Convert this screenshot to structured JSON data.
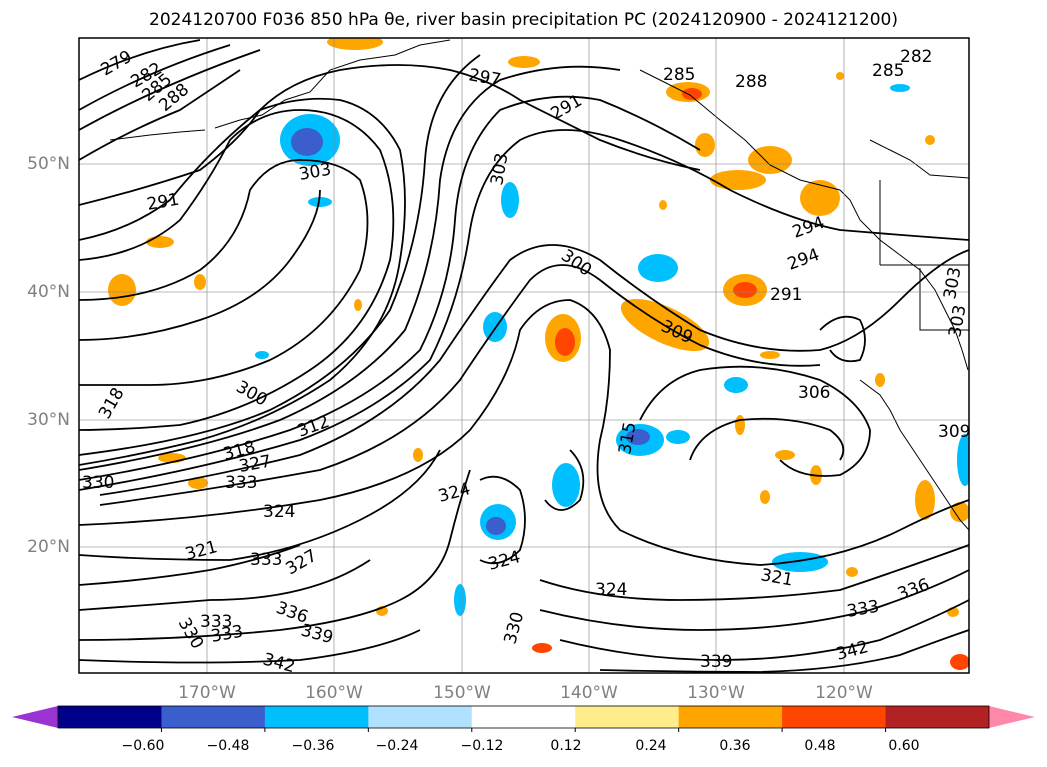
{
  "title": "2024120700 F036 850 hPa θe, river basin precipitation PC (2024120900 - 2024121200)",
  "axes": {
    "lat_ticks": [
      "50°N",
      "40°N",
      "30°N",
      "20°N"
    ],
    "lon_ticks": [
      "170°W",
      "160°W",
      "150°W",
      "140°W",
      "130°W",
      "120°W"
    ]
  },
  "contour_labels": [
    "279",
    "282",
    "285",
    "288",
    "291",
    "297",
    "291",
    "285",
    "288",
    "282",
    "285",
    "303",
    "291",
    "303",
    "294",
    "294",
    "306",
    "300",
    "309",
    "303",
    "303",
    "318",
    "300",
    "312",
    "318",
    "327",
    "330",
    "333",
    "324",
    "324",
    "315",
    "324",
    "321",
    "333",
    "327",
    "333",
    "330",
    "336",
    "339",
    "333",
    "342",
    "330",
    "324",
    "339",
    "321",
    "333",
    "336",
    "342",
    "309"
  ],
  "colorbar": {
    "labels": [
      "−0.60",
      "−0.48",
      "−0.36",
      "−0.24",
      "−0.12",
      "0.12",
      "0.24",
      "0.36",
      "0.48",
      "0.60"
    ],
    "colors": [
      "#9b32d2",
      "#00008b",
      "#3a5fcd",
      "#00bfff",
      "#b0e2ff",
      "#ffffff",
      "#ffec8b",
      "#ffa500",
      "#ff4500",
      "#b22222",
      "#ff88aa"
    ]
  }
}
